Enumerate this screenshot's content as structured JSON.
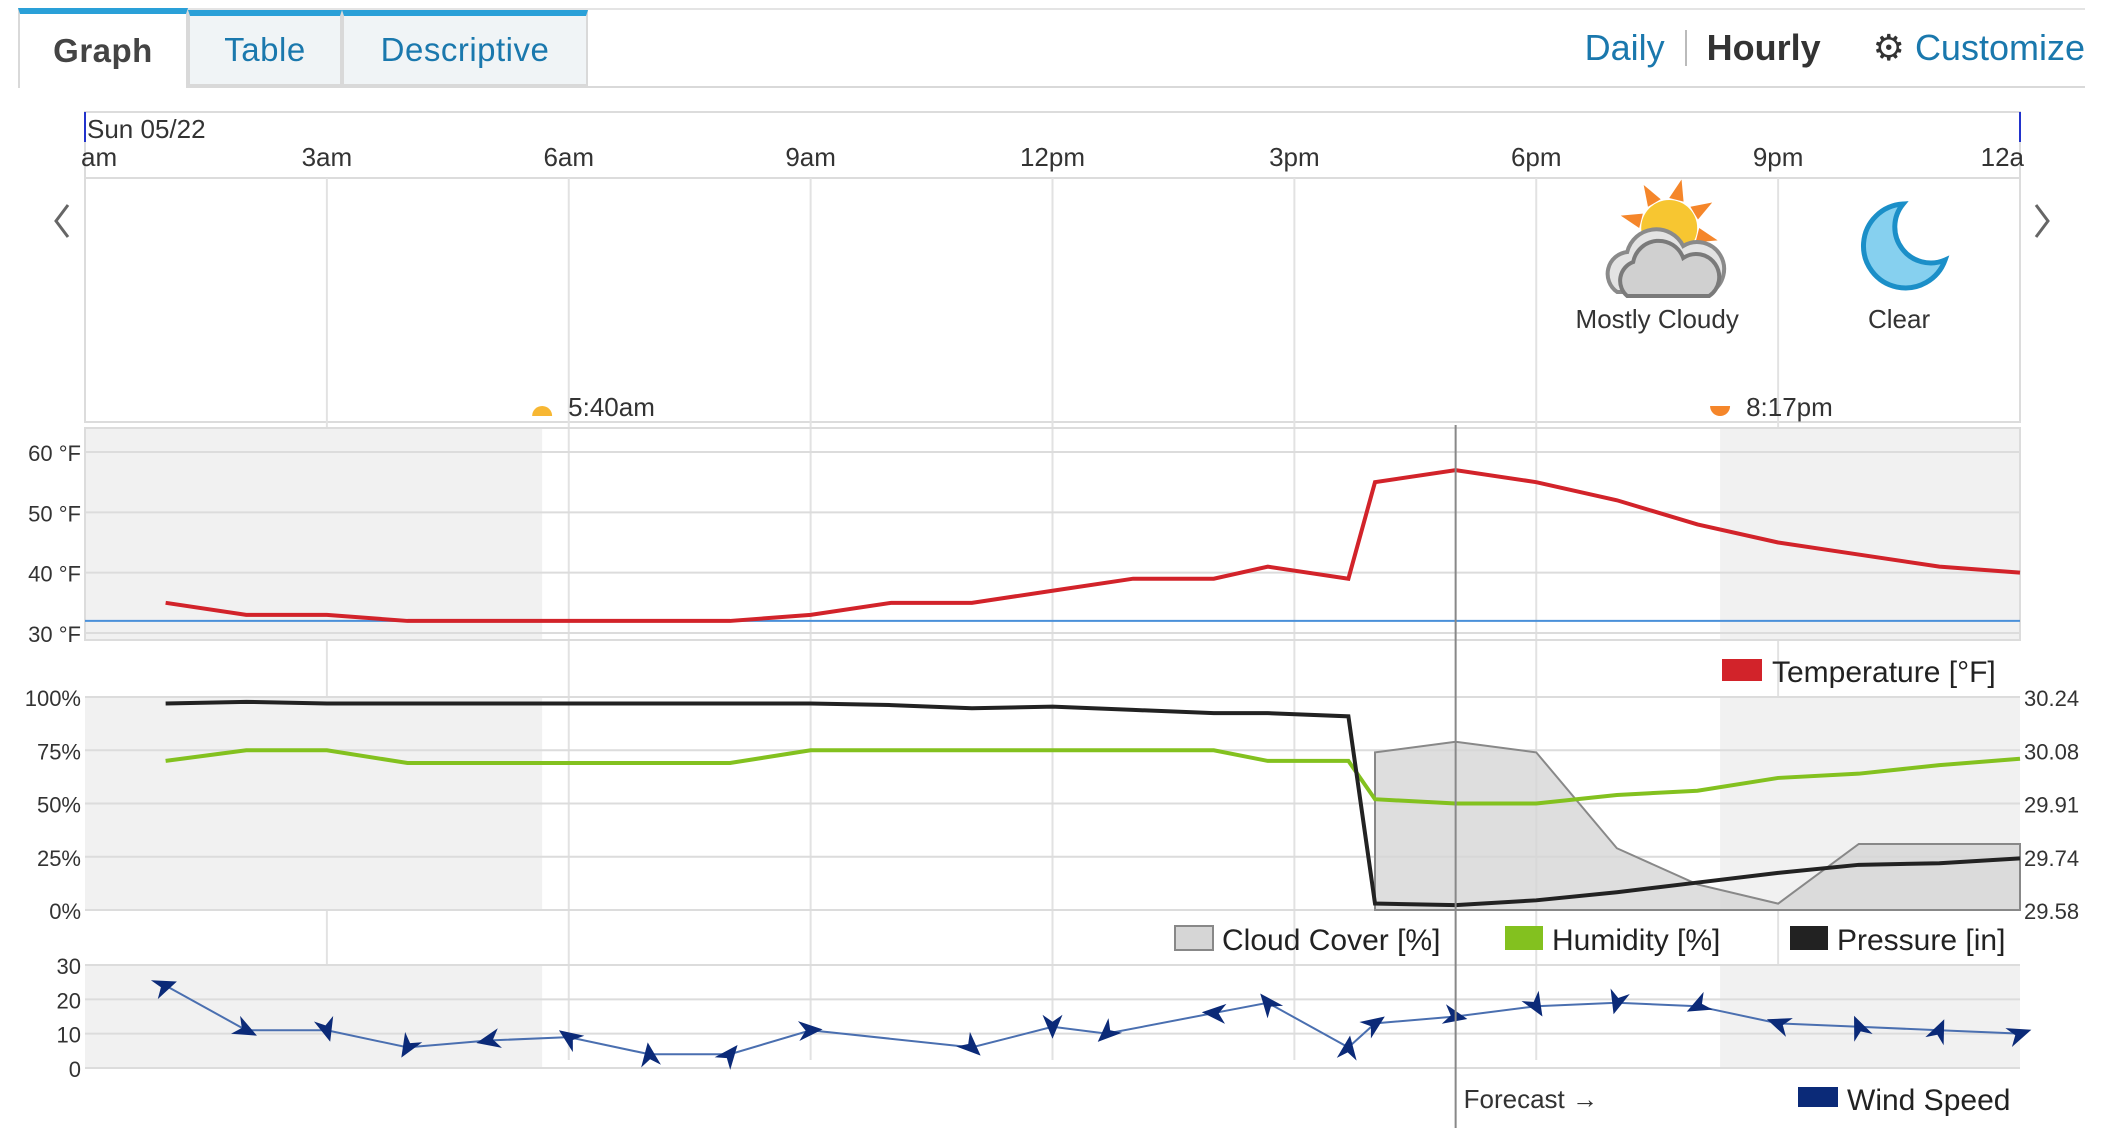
{
  "tabs": [
    {
      "label": "Graph"
    },
    {
      "label": "Table"
    },
    {
      "label": "Descriptive"
    }
  ],
  "links": {
    "daily": "Daily",
    "hourly": "Hourly",
    "customize": "Customize"
  },
  "icons": {
    "prev": "chevron-left-icon",
    "next": "chevron-right-icon",
    "gear": "gear-icon"
  },
  "date_label": "Sun 05/22",
  "conditions": [
    {
      "label": "Mostly Cloudy",
      "icon": "partly-cloudy-icon",
      "hour": 19.5
    },
    {
      "label": "Clear",
      "icon": "moon-icon",
      "hour": 22.5
    }
  ],
  "sunrise": {
    "time": "5:40am",
    "hour": 5.67
  },
  "sunset": {
    "time": "8:17pm",
    "hour": 20.28
  },
  "night_shading": [
    [
      0,
      5.67
    ],
    [
      20.28,
      24
    ]
  ],
  "forecast_label": "Forecast →",
  "forecast_start_hour": 17,
  "colors": {
    "temperature": "#d2232a",
    "humidity": "#83c11f",
    "pressure": "#222222",
    "cloud": "#d6d6d6",
    "wind": "#0b2a78",
    "link": "#1a78ad",
    "freezing": "#4a90d9"
  },
  "chart_data": [
    {
      "type": "line",
      "title": "",
      "x_ticks": [
        "am",
        "3am",
        "6am",
        "9am",
        "12pm",
        "3pm",
        "6pm",
        "9pm",
        "12a"
      ],
      "y_ticks": [
        "60 °F",
        "50 °F",
        "40 °F",
        "30 °F"
      ],
      "ylim": [
        30,
        60
      ],
      "freezing_line": 32,
      "series": [
        {
          "name": "Temperature [°F]",
          "x": [
            1,
            2,
            3,
            4,
            5,
            6,
            7,
            8,
            9,
            10,
            11,
            12,
            13,
            14,
            14.67,
            15.67,
            16,
            17,
            18,
            19,
            20,
            21,
            22,
            23,
            24
          ],
          "values": [
            35,
            33,
            33,
            32,
            32,
            32,
            32,
            32,
            33,
            35,
            35,
            37,
            39,
            39,
            41,
            39,
            55,
            57,
            55,
            52,
            48,
            45,
            43,
            41,
            40
          ]
        }
      ]
    },
    {
      "type": "line",
      "y_ticks_left": [
        "100%",
        "75%",
        "50%",
        "25%",
        "0%"
      ],
      "y_ticks_right": [
        "30.24",
        "30.08",
        "29.91",
        "29.74",
        "29.58"
      ],
      "ylim_left": [
        0,
        100
      ],
      "ylim_right": [
        29.58,
        30.24
      ],
      "series": [
        {
          "name": "Cloud Cover [%]",
          "type": "area",
          "x": [
            16,
            17,
            18,
            19,
            20,
            21,
            22,
            23,
            24
          ],
          "values": [
            74,
            79,
            74,
            29,
            12,
            3,
            31,
            31,
            31
          ]
        },
        {
          "name": "Humidity [%]",
          "x": [
            1,
            2,
            3,
            4,
            5,
            6,
            7,
            8,
            9,
            10,
            11,
            12,
            13,
            14,
            14.67,
            15.67,
            16,
            17,
            18,
            19,
            20,
            21,
            22,
            23,
            24
          ],
          "values": [
            70,
            75,
            75,
            69,
            69,
            69,
            69,
            69,
            75,
            75,
            75,
            75,
            75,
            75,
            70,
            70,
            52,
            50,
            50,
            54,
            56,
            62,
            64,
            68,
            71
          ]
        },
        {
          "name": "Pressure [in]",
          "x": [
            1,
            2,
            3,
            4,
            5,
            6,
            7,
            8,
            9,
            10,
            11,
            12,
            13,
            14,
            14.67,
            15.67,
            16,
            17,
            18,
            19,
            20,
            21,
            22,
            23,
            24
          ],
          "values": [
            30.22,
            30.225,
            30.22,
            30.22,
            30.22,
            30.22,
            30.22,
            30.22,
            30.22,
            30.215,
            30.205,
            30.21,
            30.2,
            30.19,
            30.19,
            30.18,
            29.6,
            29.595,
            29.61,
            29.635,
            29.665,
            29.695,
            29.72,
            29.725,
            29.74
          ]
        }
      ]
    },
    {
      "type": "line",
      "y_ticks": [
        "30",
        "20",
        "10",
        "0"
      ],
      "ylim": [
        0,
        30
      ],
      "series": [
        {
          "name": "Wind Speed",
          "x": [
            1,
            2,
            3,
            4,
            5,
            6,
            7,
            8,
            9,
            11,
            12,
            12.67,
            14,
            14.67,
            15.67,
            16,
            17,
            18,
            19,
            20,
            21,
            22,
            23,
            24
          ],
          "values": [
            24,
            11,
            11,
            6,
            8,
            9,
            4,
            4,
            11,
            6,
            12,
            10,
            16,
            19,
            6,
            13,
            15,
            18,
            19,
            18,
            13,
            12,
            11,
            10
          ]
        }
      ]
    }
  ]
}
